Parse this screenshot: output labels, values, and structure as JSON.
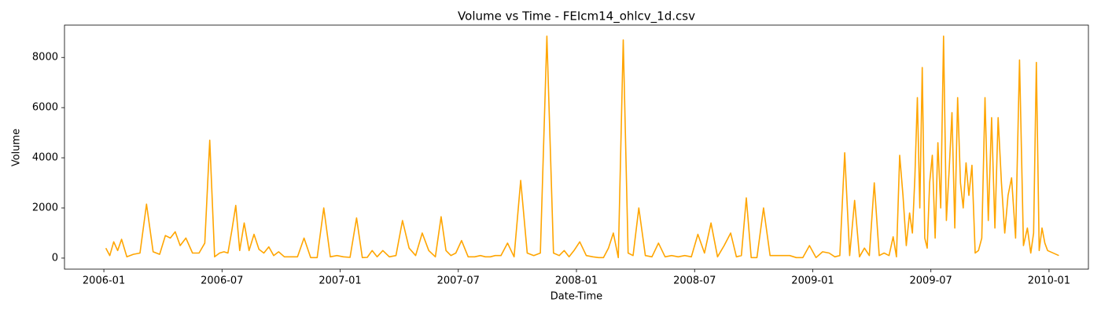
{
  "chart_data": {
    "type": "line",
    "title": "Volume vs Time - FEIcm14_ohlcv_1d.csv",
    "x_label": "Date-Time",
    "y_label": "Volume",
    "x": [
      "2006-01",
      "2006-01",
      "2006-01",
      "2006-01",
      "2006-01",
      "2006-02",
      "2006-02",
      "2006-02",
      "2006-03",
      "2006-03",
      "2006-03",
      "2006-04",
      "2006-04",
      "2006-04",
      "2006-04",
      "2006-05",
      "2006-05",
      "2006-05",
      "2006-06",
      "2006-06",
      "2006-06",
      "2006-06",
      "2006-07",
      "2006-07",
      "2006-07",
      "2006-07",
      "2006-07",
      "2006-08",
      "2006-08",
      "2006-08",
      "2006-08",
      "2006-09",
      "2006-09",
      "2006-09",
      "2006-09",
      "2006-10",
      "2006-10",
      "2006-10",
      "2006-11",
      "2006-11",
      "2006-11",
      "2006-12",
      "2006-12",
      "2006-12",
      "2007-01",
      "2007-01",
      "2007-01",
      "2007-02",
      "2007-02",
      "2007-02",
      "2007-02",
      "2007-03",
      "2007-03",
      "2007-03",
      "2007-04",
      "2007-04",
      "2007-04",
      "2007-05",
      "2007-05",
      "2007-05",
      "2007-06",
      "2007-06",
      "2007-06",
      "2007-06",
      "2007-07",
      "2007-07",
      "2007-07",
      "2007-08",
      "2007-08",
      "2007-08",
      "2007-08",
      "2007-09",
      "2007-09",
      "2007-09",
      "2007-10",
      "2007-10",
      "2007-10",
      "2007-11",
      "2007-11",
      "2007-11",
      "2007-12",
      "2007-12",
      "2007-12",
      "2007-12",
      "2008-01",
      "2008-01",
      "2008-01",
      "2008-02",
      "2008-02",
      "2008-02",
      "2008-02",
      "2008-03",
      "2008-03",
      "2008-03",
      "2008-03",
      "2008-04",
      "2008-04",
      "2008-04",
      "2008-05",
      "2008-05",
      "2008-05",
      "2008-06",
      "2008-06",
      "2008-06",
      "2008-07",
      "2008-07",
      "2008-07",
      "2008-08",
      "2008-08",
      "2008-08",
      "2008-09",
      "2008-09",
      "2008-09",
      "2008-09",
      "2008-10",
      "2008-10",
      "2008-10",
      "2008-11",
      "2008-11",
      "2008-11",
      "2008-12",
      "2008-12",
      "2008-12",
      "2009-01",
      "2009-01",
      "2009-01",
      "2009-02",
      "2009-02",
      "2009-02",
      "2009-02",
      "2009-03",
      "2009-03",
      "2009-03",
      "2009-03",
      "2009-04",
      "2009-04",
      "2009-04",
      "2009-04",
      "2009-05",
      "2009-05",
      "2009-05",
      "2009-05",
      "2009-05",
      "2009-05",
      "2009-06",
      "2009-06",
      "2009-06",
      "2009-06",
      "2009-06",
      "2009-06",
      "2009-06",
      "2009-06",
      "2009-07",
      "2009-07",
      "2009-07",
      "2009-07",
      "2009-07",
      "2009-07",
      "2009-07",
      "2009-08",
      "2009-08",
      "2009-08",
      "2009-08",
      "2009-08",
      "2009-08",
      "2009-08",
      "2009-09",
      "2009-09",
      "2009-09",
      "2009-09",
      "2009-09",
      "2009-09",
      "2009-10",
      "2009-10",
      "2009-10",
      "2009-10",
      "2009-10",
      "2009-10",
      "2009-11",
      "2009-11",
      "2009-11",
      "2009-11",
      "2009-11",
      "2009-12",
      "2009-12",
      "2009-12",
      "2009-12",
      "2009-12",
      "2009-12",
      "2009-12",
      "2010-01"
    ],
    "values": [
      400,
      100,
      650,
      300,
      750,
      50,
      150,
      200,
      2150,
      250,
      150,
      900,
      800,
      1050,
      500,
      800,
      200,
      200,
      600,
      4700,
      50,
      200,
      250,
      200,
      1100,
      2100,
      300,
      1400,
      300,
      950,
      350,
      200,
      450,
      100,
      250,
      50,
      50,
      50,
      800,
      20,
      20,
      2000,
      50,
      100,
      50,
      30,
      1600,
      20,
      30,
      300,
      50,
      300,
      50,
      100,
      1500,
      400,
      100,
      1000,
      300,
      50,
      1650,
      300,
      100,
      200,
      700,
      50,
      50,
      100,
      50,
      50,
      100,
      100,
      600,
      50,
      3100,
      200,
      100,
      200,
      8850,
      200,
      100,
      300,
      50,
      300,
      650,
      100,
      50,
      20,
      20,
      400,
      1000,
      20,
      8700,
      200,
      100,
      2000,
      100,
      50,
      600,
      50,
      100,
      50,
      100,
      50,
      950,
      200,
      1400,
      50,
      500,
      1000,
      50,
      100,
      2400,
      20,
      20,
      2000,
      100,
      100,
      100,
      100,
      20,
      20,
      500,
      20,
      250,
      200,
      50,
      100,
      4200,
      100,
      2300,
      50,
      400,
      100,
      3000,
      100,
      200,
      100,
      850,
      50,
      4100,
      2500,
      500,
      1800,
      1000,
      3200,
      6400,
      2000,
      7600,
      800,
      400,
      3000,
      4100,
      800,
      4600,
      2000,
      8850,
      1500,
      3500,
      5800,
      1200,
      6400,
      3000,
      2000,
      3800,
      2500,
      3700,
      200,
      300,
      800,
      6400,
      1500,
      5600,
      1200,
      5600,
      3000,
      1000,
      2500,
      3200,
      800,
      7900,
      500,
      1200,
      200,
      1000,
      7800,
      300,
      1200,
      600,
      300,
      100
    ],
    "color": "#ffa500",
    "xlim": [
      "2005-11",
      "2010-03"
    ],
    "xticks": [
      "2006-01",
      "2006-07",
      "2007-01",
      "2007-07",
      "2008-01",
      "2008-07",
      "2009-01",
      "2009-07",
      "2010-01"
    ],
    "ylim": [
      -440,
      9290
    ],
    "yticks": [
      0,
      2000,
      4000,
      6000,
      8000
    ]
  }
}
